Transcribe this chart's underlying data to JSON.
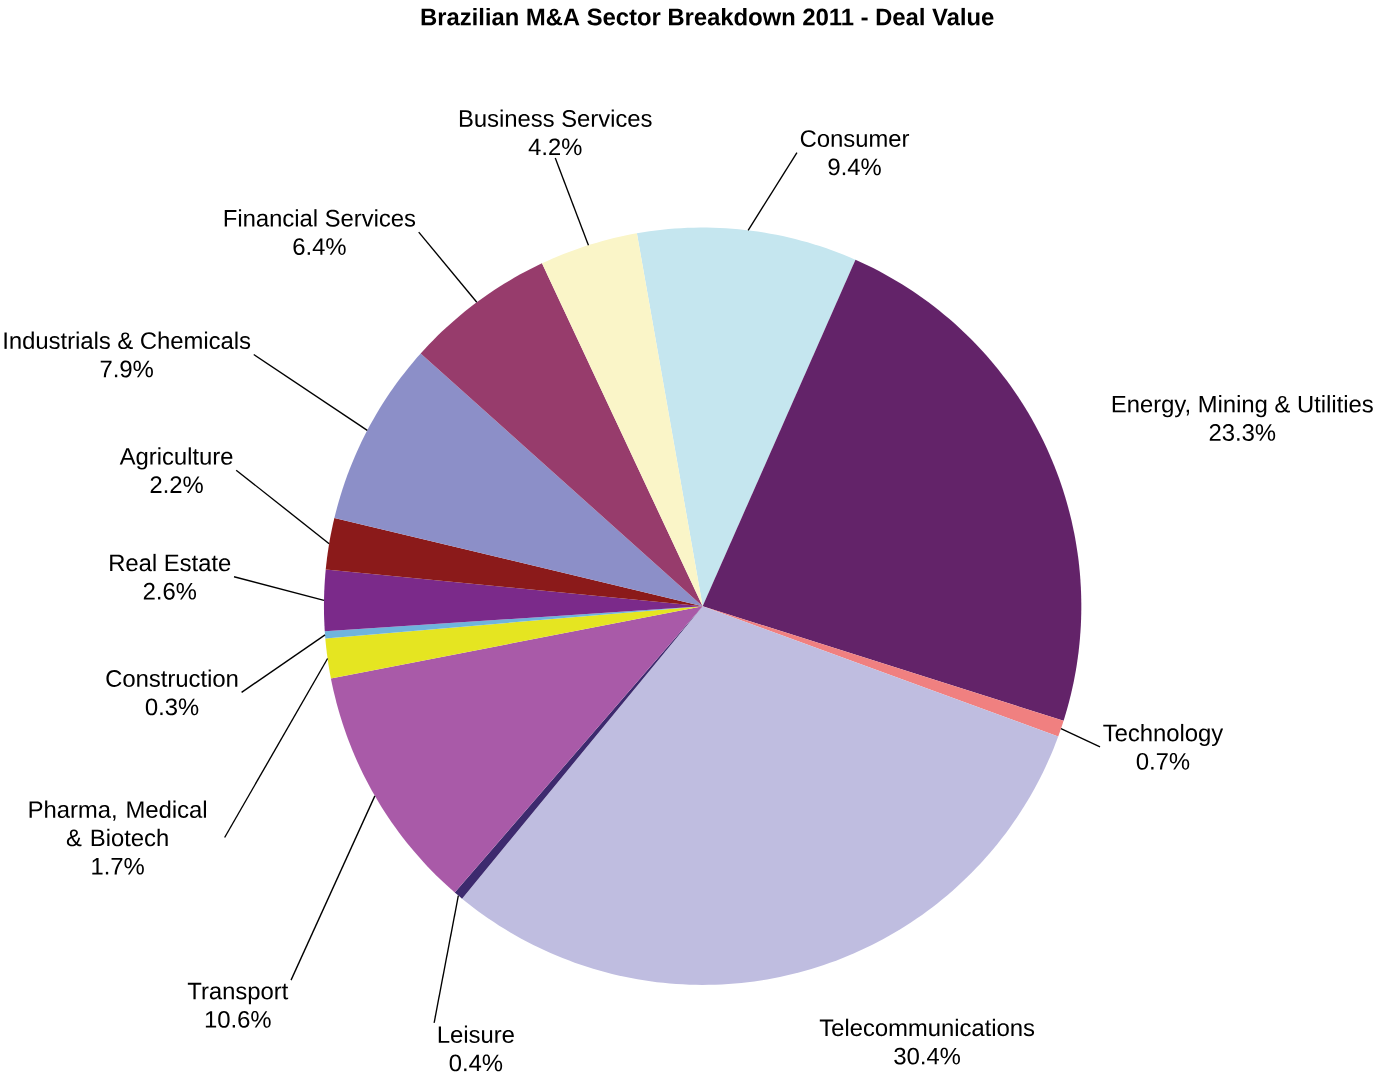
{
  "chart_data": {
    "type": "pie",
    "title": "Brazilian M&A Sector Breakdown 2011 - Deal Value",
    "categories": [
      "Consumer",
      "Energy, Mining & Utilities",
      "Technology",
      "Telecommunications",
      "Leisure",
      "Transport",
      "Pharma, Medical & Biotech",
      "Construction",
      "Real Estate",
      "Agriculture",
      "Industrials & Chemicals",
      "Financial Services",
      "Business Services"
    ],
    "values": [
      9.4,
      23.3,
      0.7,
      30.4,
      0.4,
      10.6,
      1.7,
      0.3,
      2.6,
      2.2,
      7.9,
      6.4,
      4.2
    ],
    "value_labels": [
      "9.4%",
      "23.3%",
      "0.7%",
      "30.4%",
      "0.4%",
      "10.6%",
      "1.7%",
      "0.3%",
      "2.6%",
      "2.2%",
      "7.9%",
      "6.4%",
      "4.2%"
    ],
    "colors": [
      "#c5e6ef",
      "#632369",
      "#f08080",
      "#bfbde0",
      "#3d2a6e",
      "#a95aa8",
      "#e5e521",
      "#6fb4dd",
      "#7b2a8a",
      "#8b1a1a",
      "#8c8fc8",
      "#973c6c",
      "#faf5c8"
    ]
  }
}
